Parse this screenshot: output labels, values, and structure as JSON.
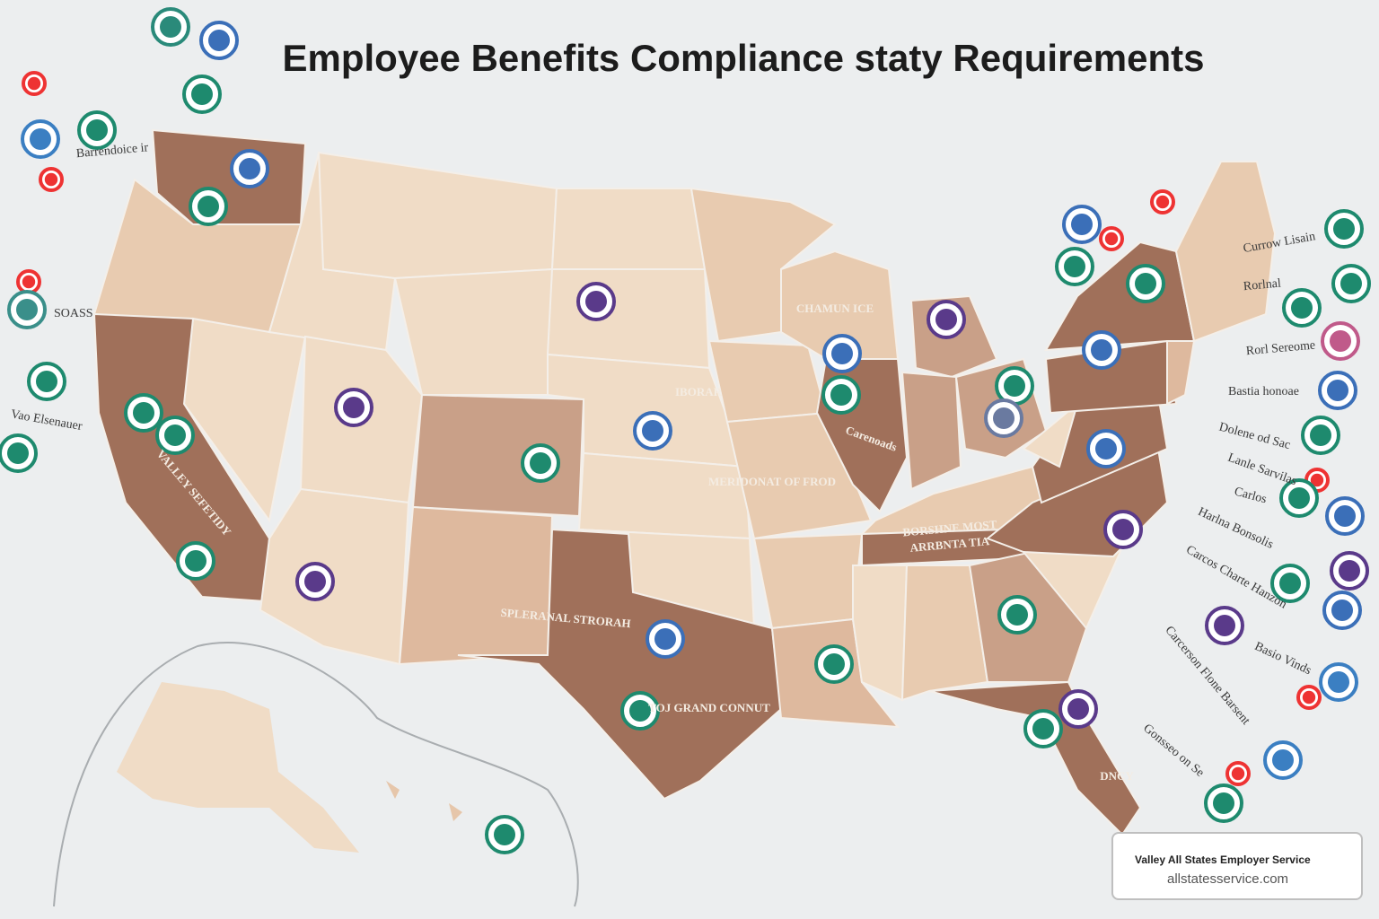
{
  "header": {
    "title": "Employee Benefits Compliance staty Requirements"
  },
  "map_labels": [
    "CHAMUN ICE",
    "IBORAR",
    "MERIDONAT OF FROD",
    "Carenoads",
    "SPLERANAL STRORAH",
    "TOJ GRAND CONNUT",
    "BORSHNE MOST",
    "ARRBNTA TIA",
    "DNCY",
    "VALLEY SEFETIDY"
  ],
  "side_labels": [
    "SOASS",
    "Barrendoice ir",
    "Vao Elsenauer",
    "Currow Lisain",
    "Rorlnal",
    "Rorl Sereome",
    "Bastia honoae",
    "Dolene od Sac",
    "Lanle Sarvilas",
    "Carlos",
    "Harlna Bonsolis",
    "Carcos Charte Hanzon",
    "Basio Vinds",
    "Carcerson Flone Barsent",
    "Gonsseo on Se"
  ],
  "footer": {
    "company": "Valley All States Employer Service",
    "url": "allstatesservice.com"
  }
}
